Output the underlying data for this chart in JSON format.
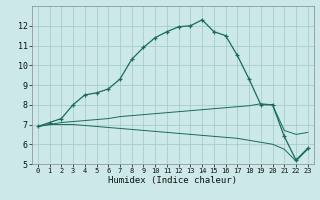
{
  "xlabel": "Humidex (Indice chaleur)",
  "bg_color": "#cce8e8",
  "grid_color": "#a8cccc",
  "line_color": "#1a6b5a",
  "xlim": [
    -0.5,
    23.5
  ],
  "ylim": [
    5,
    13
  ],
  "yticks": [
    5,
    6,
    7,
    8,
    9,
    10,
    11,
    12
  ],
  "xticks": [
    0,
    1,
    2,
    3,
    4,
    5,
    6,
    7,
    8,
    9,
    10,
    11,
    12,
    13,
    14,
    15,
    16,
    17,
    18,
    19,
    20,
    21,
    22,
    23
  ],
  "line1_x": [
    0,
    1,
    2,
    3,
    4,
    5,
    6,
    7,
    8,
    9,
    10,
    11,
    12,
    13,
    14,
    15,
    16,
    17,
    18,
    19,
    20,
    21,
    22,
    23
  ],
  "line1_y": [
    6.9,
    7.1,
    7.3,
    8.0,
    8.5,
    8.6,
    8.8,
    9.3,
    10.3,
    10.9,
    11.4,
    11.7,
    11.95,
    12.0,
    12.3,
    11.7,
    11.5,
    10.5,
    9.3,
    8.0,
    8.0,
    6.4,
    5.2,
    5.8
  ],
  "line2_x": [
    0,
    1,
    2,
    3,
    4,
    5,
    6,
    7,
    8,
    9,
    10,
    11,
    12,
    13,
    14,
    15,
    16,
    17,
    18,
    19,
    20,
    21,
    22,
    23
  ],
  "line2_y": [
    6.9,
    7.0,
    7.1,
    7.15,
    7.2,
    7.25,
    7.3,
    7.4,
    7.45,
    7.5,
    7.55,
    7.6,
    7.65,
    7.7,
    7.75,
    7.8,
    7.85,
    7.9,
    7.95,
    8.05,
    8.0,
    6.7,
    6.5,
    6.6
  ],
  "line3_x": [
    0,
    1,
    2,
    3,
    4,
    5,
    6,
    7,
    8,
    9,
    10,
    11,
    12,
    13,
    14,
    15,
    16,
    17,
    18,
    19,
    20,
    21,
    22,
    23
  ],
  "line3_y": [
    6.9,
    7.0,
    7.0,
    7.0,
    6.95,
    6.9,
    6.85,
    6.8,
    6.75,
    6.7,
    6.65,
    6.6,
    6.55,
    6.5,
    6.45,
    6.4,
    6.35,
    6.3,
    6.2,
    6.1,
    6.0,
    5.75,
    5.15,
    5.75
  ]
}
